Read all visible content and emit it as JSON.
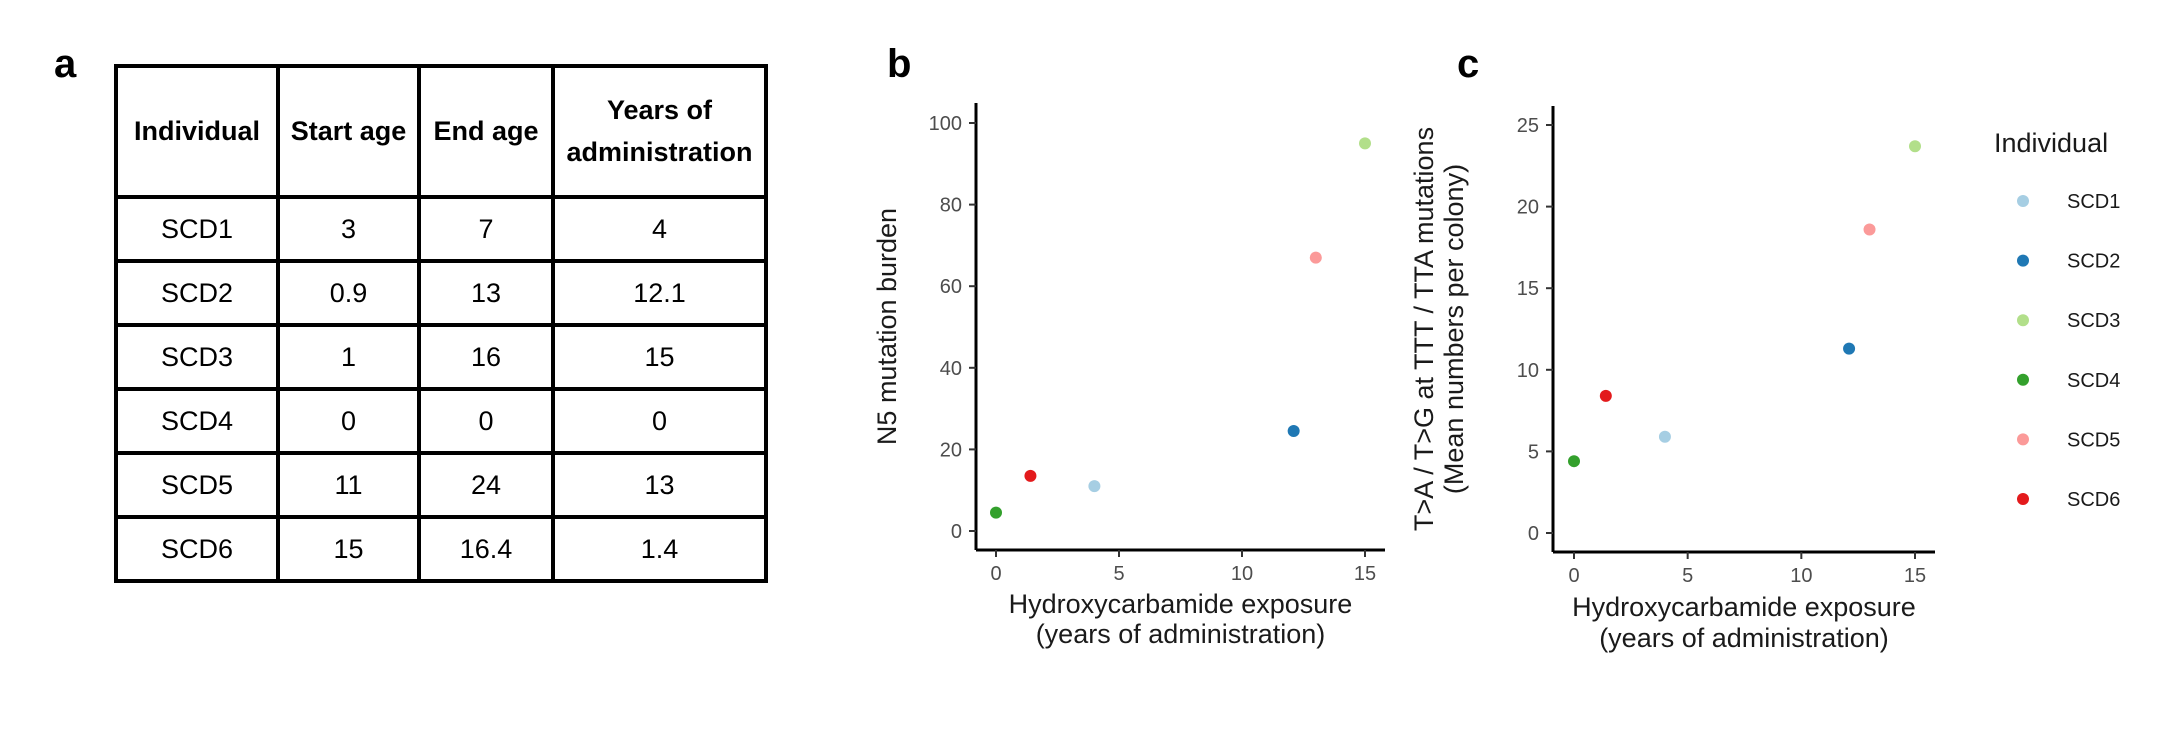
{
  "panels": {
    "a": "a",
    "b": "b",
    "c": "c"
  },
  "table": {
    "headers": [
      "Individual",
      "Start age",
      "End age",
      "Years of administration"
    ],
    "rows": [
      [
        "SCD1",
        "3",
        "7",
        "4"
      ],
      [
        "SCD2",
        "0.9",
        "13",
        "12.1"
      ],
      [
        "SCD3",
        "1",
        "16",
        "15"
      ],
      [
        "SCD4",
        "0",
        "0",
        "0"
      ],
      [
        "SCD5",
        "11",
        "24",
        "13"
      ],
      [
        "SCD6",
        "15",
        "16.4",
        "1.4"
      ]
    ]
  },
  "legend": {
    "title": "Individual",
    "entries": [
      {
        "name": "SCD1",
        "color": "#a6cee3"
      },
      {
        "name": "SCD2",
        "color": "#1f78b4"
      },
      {
        "name": "SCD3",
        "color": "#b2df8a"
      },
      {
        "name": "SCD4",
        "color": "#33a02c"
      },
      {
        "name": "SCD5",
        "color": "#fb9a99"
      },
      {
        "name": "SCD6",
        "color": "#e31a1c"
      }
    ],
    "placement": "right"
  },
  "chart_data": [
    {
      "type": "scatter",
      "panel": "b",
      "xlabel": [
        "Hydroxycarbamide exposure",
        "(years of administration)"
      ],
      "ylabel": [
        "N5 mutation burden"
      ],
      "xlim": [
        0,
        15
      ],
      "ylim": [
        0,
        100
      ],
      "xticks": [
        0,
        5,
        10,
        15
      ],
      "yticks": [
        0,
        20,
        40,
        60,
        80,
        100
      ],
      "grid": false,
      "points": [
        {
          "series": "SCD1",
          "x": 4,
          "y": 11
        },
        {
          "series": "SCD2",
          "x": 12.1,
          "y": 24.5
        },
        {
          "series": "SCD3",
          "x": 15,
          "y": 95
        },
        {
          "series": "SCD4",
          "x": 0,
          "y": 4.5
        },
        {
          "series": "SCD5",
          "x": 13,
          "y": 67
        },
        {
          "series": "SCD6",
          "x": 1.4,
          "y": 13.5
        }
      ]
    },
    {
      "type": "scatter",
      "panel": "c",
      "xlabel": [
        "Hydroxycarbamide exposure",
        "(years of administration)"
      ],
      "ylabel": [
        "T>A / T>G at TTT / TTA mutations",
        "(Mean numbers per colony)"
      ],
      "xlim": [
        0,
        15
      ],
      "ylim": [
        0,
        25
      ],
      "xticks": [
        0,
        5,
        10,
        15
      ],
      "yticks": [
        0,
        5,
        10,
        15,
        20,
        25
      ],
      "grid": false,
      "points": [
        {
          "series": "SCD1",
          "x": 4,
          "y": 5.9
        },
        {
          "series": "SCD2",
          "x": 12.1,
          "y": 11.3
        },
        {
          "series": "SCD3",
          "x": 15,
          "y": 23.7
        },
        {
          "series": "SCD4",
          "x": 0,
          "y": 4.4
        },
        {
          "series": "SCD5",
          "x": 13,
          "y": 18.6
        },
        {
          "series": "SCD6",
          "x": 1.4,
          "y": 8.4
        }
      ]
    }
  ]
}
